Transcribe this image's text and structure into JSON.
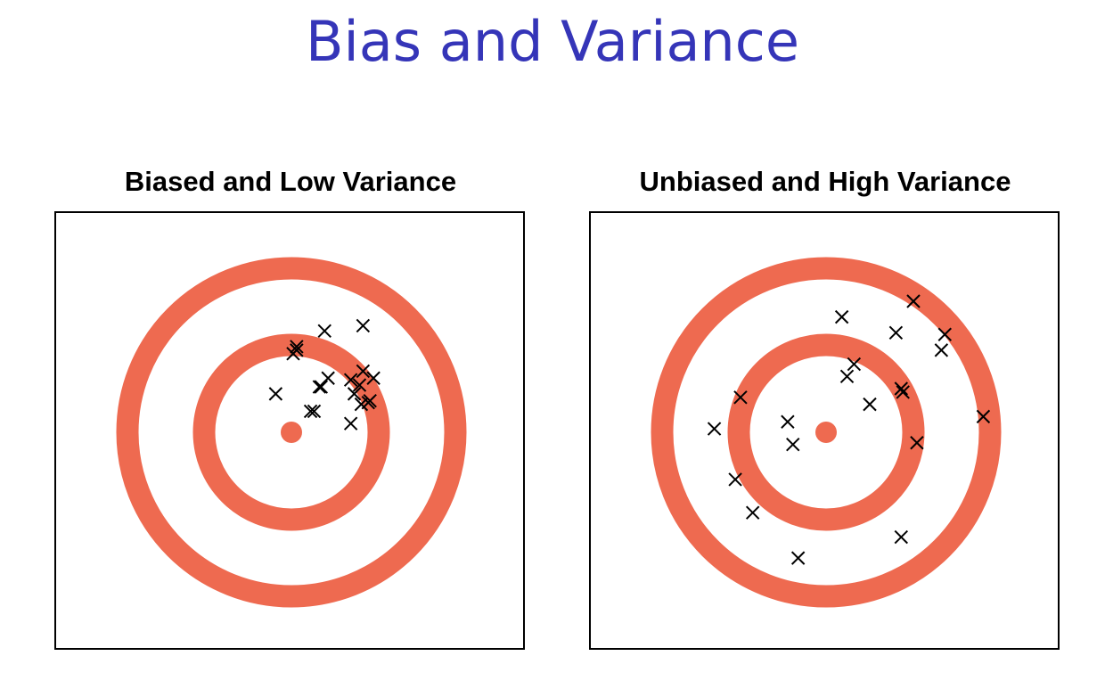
{
  "title": "Bias and Variance",
  "colors": {
    "title": "#3535b8",
    "ring": "#ee6a50",
    "marker": "#000000"
  },
  "panels": [
    {
      "id": "left",
      "title": "Biased and Low Variance",
      "points": [
        [
          0.19,
          0.58
        ],
        [
          0.41,
          0.61
        ],
        [
          0.03,
          0.49
        ],
        [
          0.01,
          0.45
        ],
        [
          0.03,
          0.47
        ],
        [
          0.47,
          0.31
        ],
        [
          0.41,
          0.35
        ],
        [
          0.39,
          0.27
        ],
        [
          0.36,
          0.22
        ],
        [
          0.45,
          0.18
        ],
        [
          0.4,
          0.16
        ],
        [
          0.44,
          0.17
        ],
        [
          0.34,
          0.3
        ],
        [
          0.17,
          0.26
        ],
        [
          0.16,
          0.26
        ],
        [
          0.11,
          0.12
        ],
        [
          0.13,
          0.12
        ],
        [
          -0.09,
          0.22
        ],
        [
          0.34,
          0.05
        ],
        [
          0.21,
          0.31
        ]
      ]
    },
    {
      "id": "right",
      "title": "Unbiased and High Variance",
      "points": [
        [
          0.5,
          0.75
        ],
        [
          0.09,
          0.66
        ],
        [
          0.4,
          0.57
        ],
        [
          0.68,
          0.56
        ],
        [
          0.66,
          0.47
        ],
        [
          0.16,
          0.39
        ],
        [
          0.12,
          0.32
        ],
        [
          0.43,
          0.25
        ],
        [
          0.44,
          0.23
        ],
        [
          -0.49,
          0.2
        ],
        [
          0.25,
          0.16
        ],
        [
          0.9,
          0.09
        ],
        [
          -0.22,
          0.06
        ],
        [
          -0.64,
          0.02
        ],
        [
          -0.19,
          -0.07
        ],
        [
          0.52,
          -0.06
        ],
        [
          -0.52,
          -0.27
        ],
        [
          -0.42,
          -0.46
        ],
        [
          0.43,
          -0.6
        ],
        [
          -0.16,
          -0.72
        ]
      ]
    }
  ]
}
